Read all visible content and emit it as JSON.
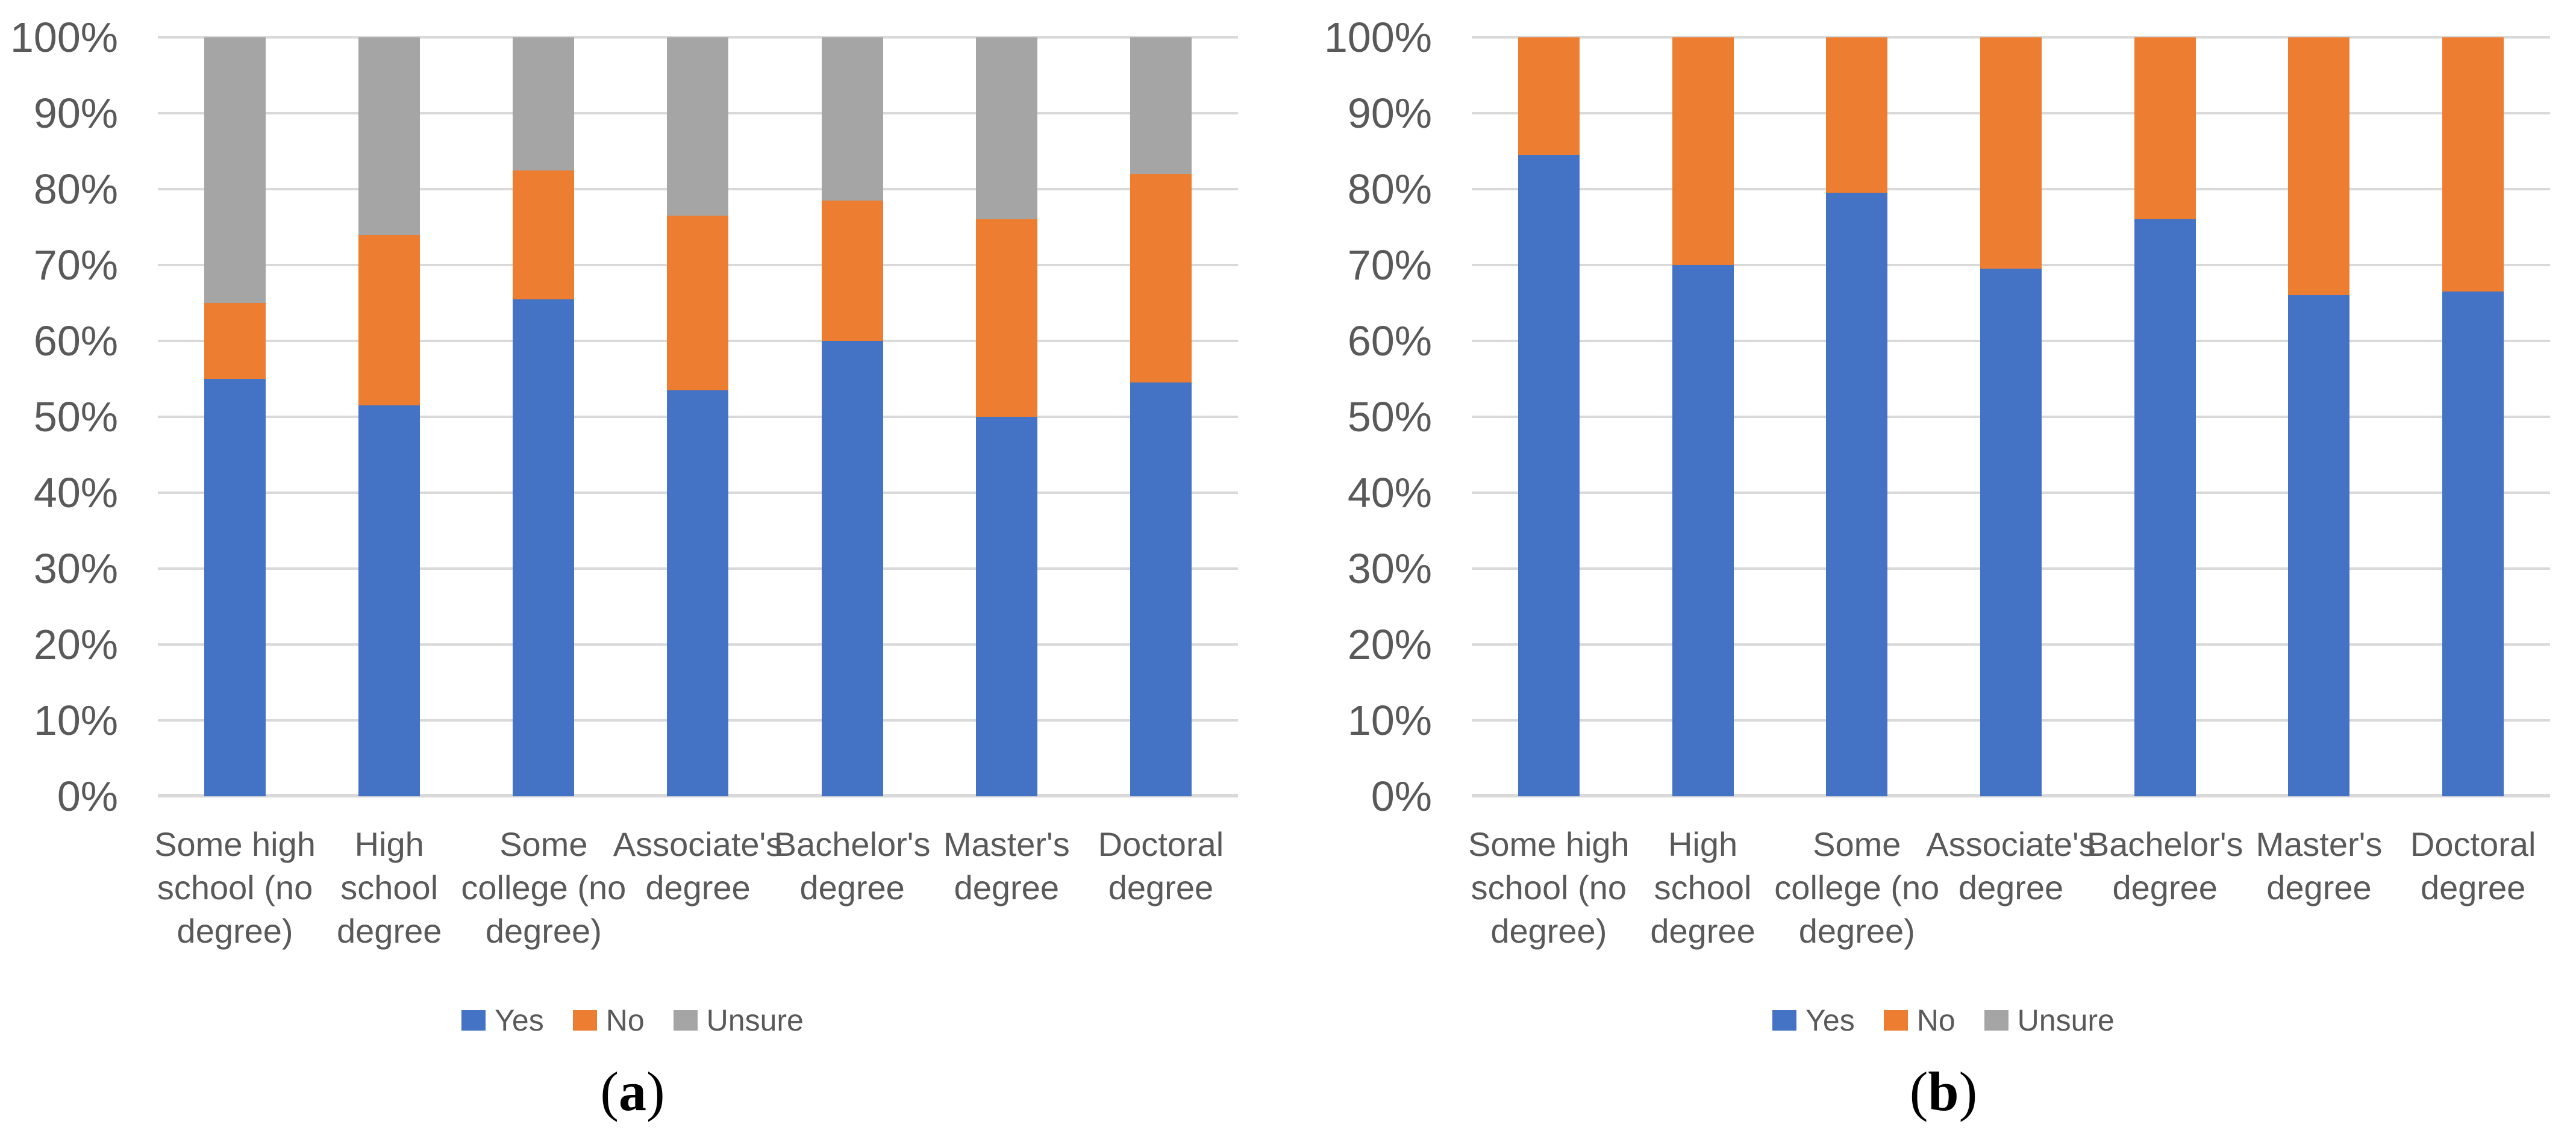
{
  "styles": {
    "gridline_color": "#D9D9D9",
    "axis_line_color": "#D9D9D9",
    "tick_text_color": "#595959",
    "category_text_color": "#595959",
    "legend_text_color": "#595959",
    "caption_color": "#000000",
    "background_color": "#FFFFFF"
  },
  "chart_data": [
    {
      "id": "a",
      "type": "bar",
      "stacked": true,
      "units": "percent",
      "title": "",
      "xlabel": "",
      "ylabel": "",
      "ylim": [
        0,
        100
      ],
      "grid": true,
      "legend_position": "bottom",
      "caption": {
        "open": "(",
        "letter": "a",
        "close": ")"
      },
      "y_ticks": [
        {
          "label": "100%",
          "value": 100
        },
        {
          "label": "90%",
          "value": 90
        },
        {
          "label": "80%",
          "value": 80
        },
        {
          "label": "70%",
          "value": 70
        },
        {
          "label": "60%",
          "value": 60
        },
        {
          "label": "50%",
          "value": 50
        },
        {
          "label": "40%",
          "value": 40
        },
        {
          "label": "30%",
          "value": 30
        },
        {
          "label": "20%",
          "value": 20
        },
        {
          "label": "10%",
          "value": 10
        },
        {
          "label": "0%",
          "value": 0
        }
      ],
      "categories": [
        {
          "name": "Some high school (no degree)",
          "lines": [
            "Some high",
            "school (no",
            "degree)"
          ]
        },
        {
          "name": "High school degree",
          "lines": [
            "High",
            "school",
            "degree"
          ]
        },
        {
          "name": "Some college (no degree)",
          "lines": [
            "Some",
            "college (no",
            "degree)"
          ]
        },
        {
          "name": "Associate's degree",
          "lines": [
            "Associate's",
            "degree"
          ]
        },
        {
          "name": "Bachelor's degree",
          "lines": [
            "Bachelor's",
            "degree"
          ]
        },
        {
          "name": "Master's degree",
          "lines": [
            "Master's",
            "degree"
          ]
        },
        {
          "name": "Doctoral degree",
          "lines": [
            "Doctoral",
            "degree"
          ]
        }
      ],
      "series": [
        {
          "name": "Yes",
          "color": "#4472C4",
          "values": [
            55,
            51.5,
            65.5,
            53.5,
            60,
            50,
            54.5
          ]
        },
        {
          "name": "No",
          "color": "#ED7D31",
          "values": [
            10,
            22.5,
            17,
            23,
            18.5,
            26,
            27.5
          ]
        },
        {
          "name": "Unsure",
          "color": "#A5A5A5",
          "values": [
            35,
            26,
            17.5,
            23.5,
            21.5,
            24,
            18
          ]
        }
      ]
    },
    {
      "id": "b",
      "type": "bar",
      "stacked": true,
      "units": "percent",
      "title": "",
      "xlabel": "",
      "ylabel": "",
      "ylim": [
        0,
        100
      ],
      "grid": true,
      "legend_position": "bottom",
      "caption": {
        "open": "(",
        "letter": "b",
        "close": ")"
      },
      "y_ticks": [
        {
          "label": "100%",
          "value": 100
        },
        {
          "label": "90%",
          "value": 90
        },
        {
          "label": "80%",
          "value": 80
        },
        {
          "label": "70%",
          "value": 70
        },
        {
          "label": "60%",
          "value": 60
        },
        {
          "label": "50%",
          "value": 50
        },
        {
          "label": "40%",
          "value": 40
        },
        {
          "label": "30%",
          "value": 30
        },
        {
          "label": "20%",
          "value": 20
        },
        {
          "label": "10%",
          "value": 10
        },
        {
          "label": "0%",
          "value": 0
        }
      ],
      "categories": [
        {
          "name": "Some high school (no degree)",
          "lines": [
            "Some high",
            "school (no",
            "degree)"
          ]
        },
        {
          "name": "High school degree",
          "lines": [
            "High",
            "school",
            "degree"
          ]
        },
        {
          "name": "Some college (no degree)",
          "lines": [
            "Some",
            "college (no",
            "degree)"
          ]
        },
        {
          "name": "Associate's degree",
          "lines": [
            "Associate's",
            "degree"
          ]
        },
        {
          "name": "Bachelor's degree",
          "lines": [
            "Bachelor's",
            "degree"
          ]
        },
        {
          "name": "Master's degree",
          "lines": [
            "Master's",
            "degree"
          ]
        },
        {
          "name": "Doctoral degree",
          "lines": [
            "Doctoral",
            "degree"
          ]
        }
      ],
      "series": [
        {
          "name": "Yes",
          "color": "#4472C4",
          "values": [
            84.5,
            70,
            79.5,
            69.5,
            76,
            66,
            66.5
          ]
        },
        {
          "name": "No",
          "color": "#ED7D31",
          "values": [
            15.5,
            30,
            20.5,
            30.5,
            24,
            34,
            33.5
          ]
        },
        {
          "name": "Unsure",
          "color": "#A5A5A5",
          "values": [
            0,
            0,
            0,
            0,
            0,
            0,
            0
          ]
        }
      ]
    }
  ]
}
